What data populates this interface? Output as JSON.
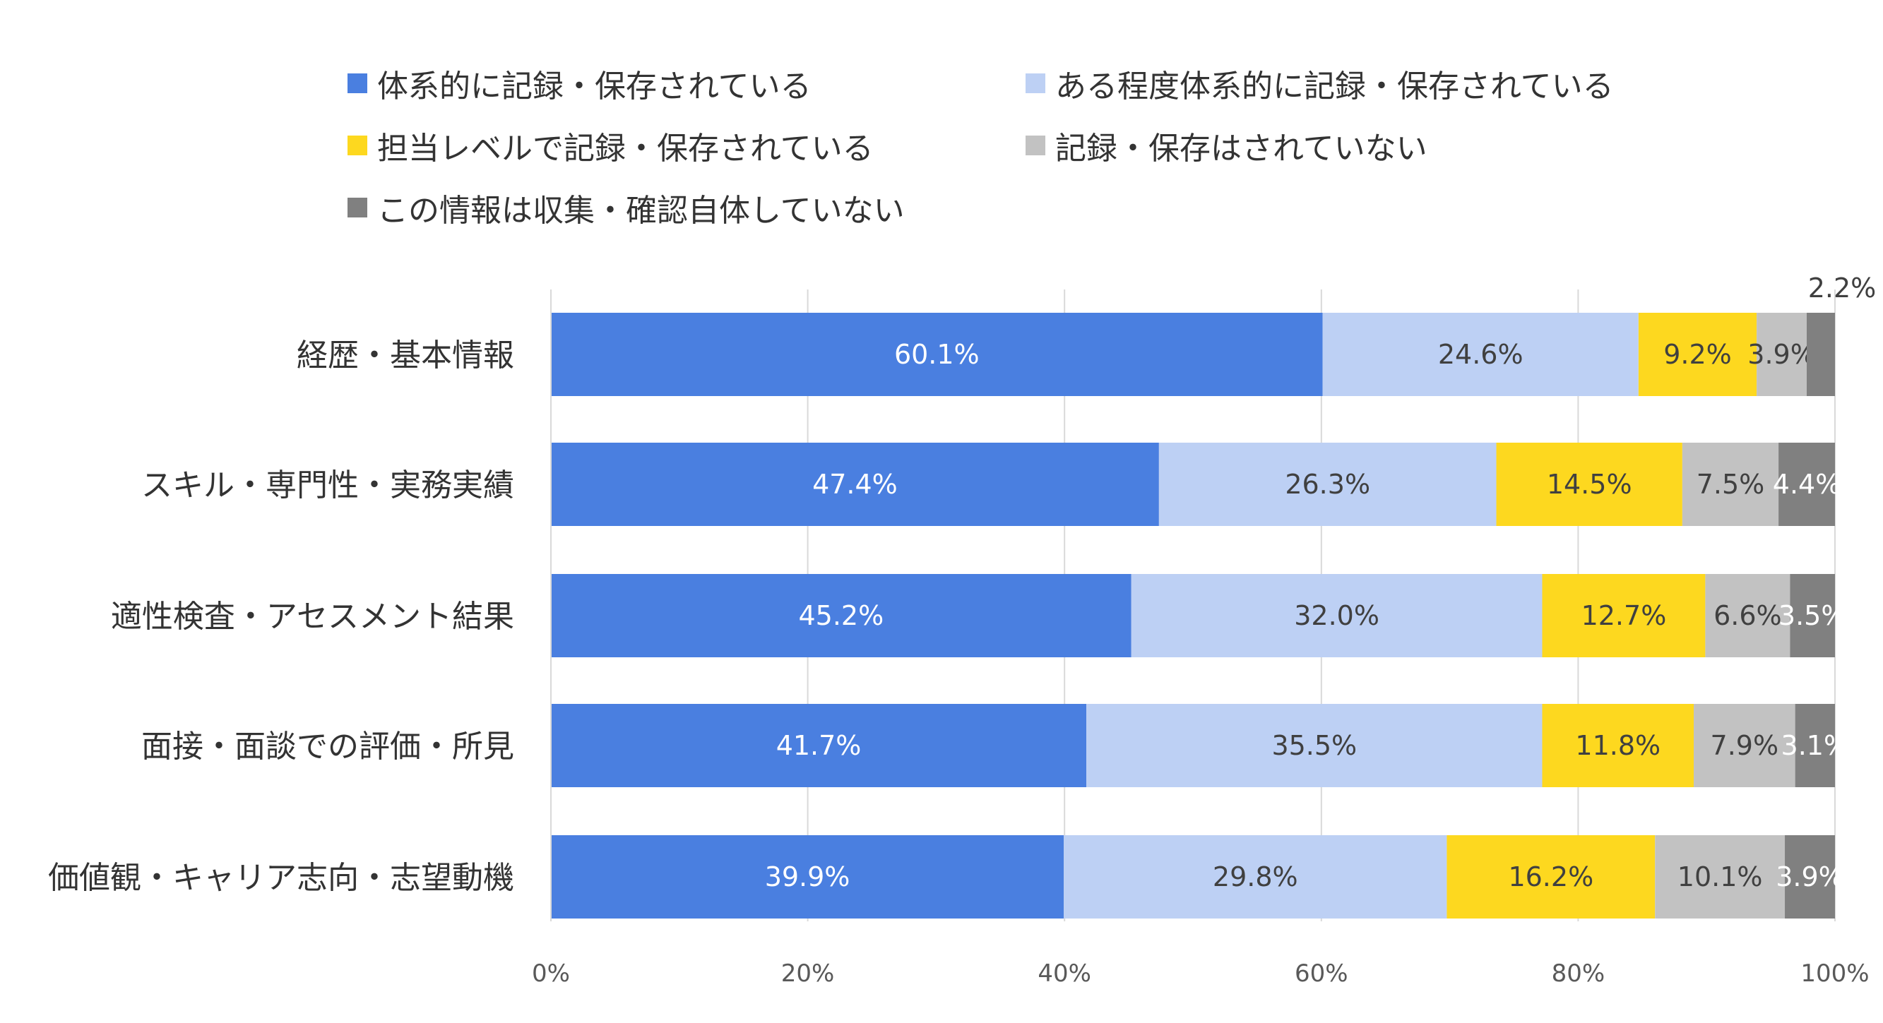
{
  "chart_data": {
    "type": "bar",
    "orientation": "horizontal",
    "stacked": "percent",
    "categories": [
      "経歴・基本情報",
      "スキル・専門性・実務実績",
      "適性検査・アセスメント結果",
      "面接・面談での評価・所見",
      "価値観・キャリア志向・志望動機"
    ],
    "series": [
      {
        "name": "体系的に記録・保存されている",
        "color": "#4a7fe0",
        "label_color": "#ffffff",
        "values": [
          60.1,
          47.4,
          45.2,
          41.7,
          39.9
        ],
        "labels": [
          "60.1%",
          "47.4%",
          "45.2%",
          "41.7%",
          "39.9%"
        ]
      },
      {
        "name": "ある程度体系的に記録・保存されている",
        "color": "#bdd0f4",
        "label_color": "#404040",
        "values": [
          24.6,
          26.3,
          32.0,
          35.5,
          29.8
        ],
        "labels": [
          "24.6%",
          "26.3%",
          "32.0%",
          "35.5%",
          "29.8%"
        ]
      },
      {
        "name": "担当レベルで記録・保存されている",
        "color": "#fdd81f",
        "label_color": "#404040",
        "values": [
          9.2,
          14.5,
          12.7,
          11.8,
          16.2
        ],
        "labels": [
          "9.2%",
          "14.5%",
          "12.7%",
          "11.8%",
          "16.2%"
        ]
      },
      {
        "name": "記録・保存はされていない",
        "color": "#c2c2c2",
        "label_color": "#404040",
        "values": [
          3.9,
          7.5,
          6.6,
          7.9,
          10.1
        ],
        "labels": [
          "3.9%",
          "7.5%",
          "6.6%",
          "7.9%",
          "10.1%"
        ]
      },
      {
        "name": "この情報は収集・確認自体していない",
        "color": "#808080",
        "label_color": "#ffffff",
        "values": [
          2.2,
          4.4,
          3.5,
          3.1,
          3.9
        ],
        "labels": [
          "2.2%",
          "4.4%",
          "3.5%",
          "3.1%",
          "3.9%"
        ]
      }
    ],
    "x_ticks": [
      "0%",
      "20%",
      "40%",
      "60%",
      "80%",
      "100%"
    ],
    "xlim": [
      0,
      100
    ],
    "grid": "vertical",
    "legend_position": "top"
  }
}
